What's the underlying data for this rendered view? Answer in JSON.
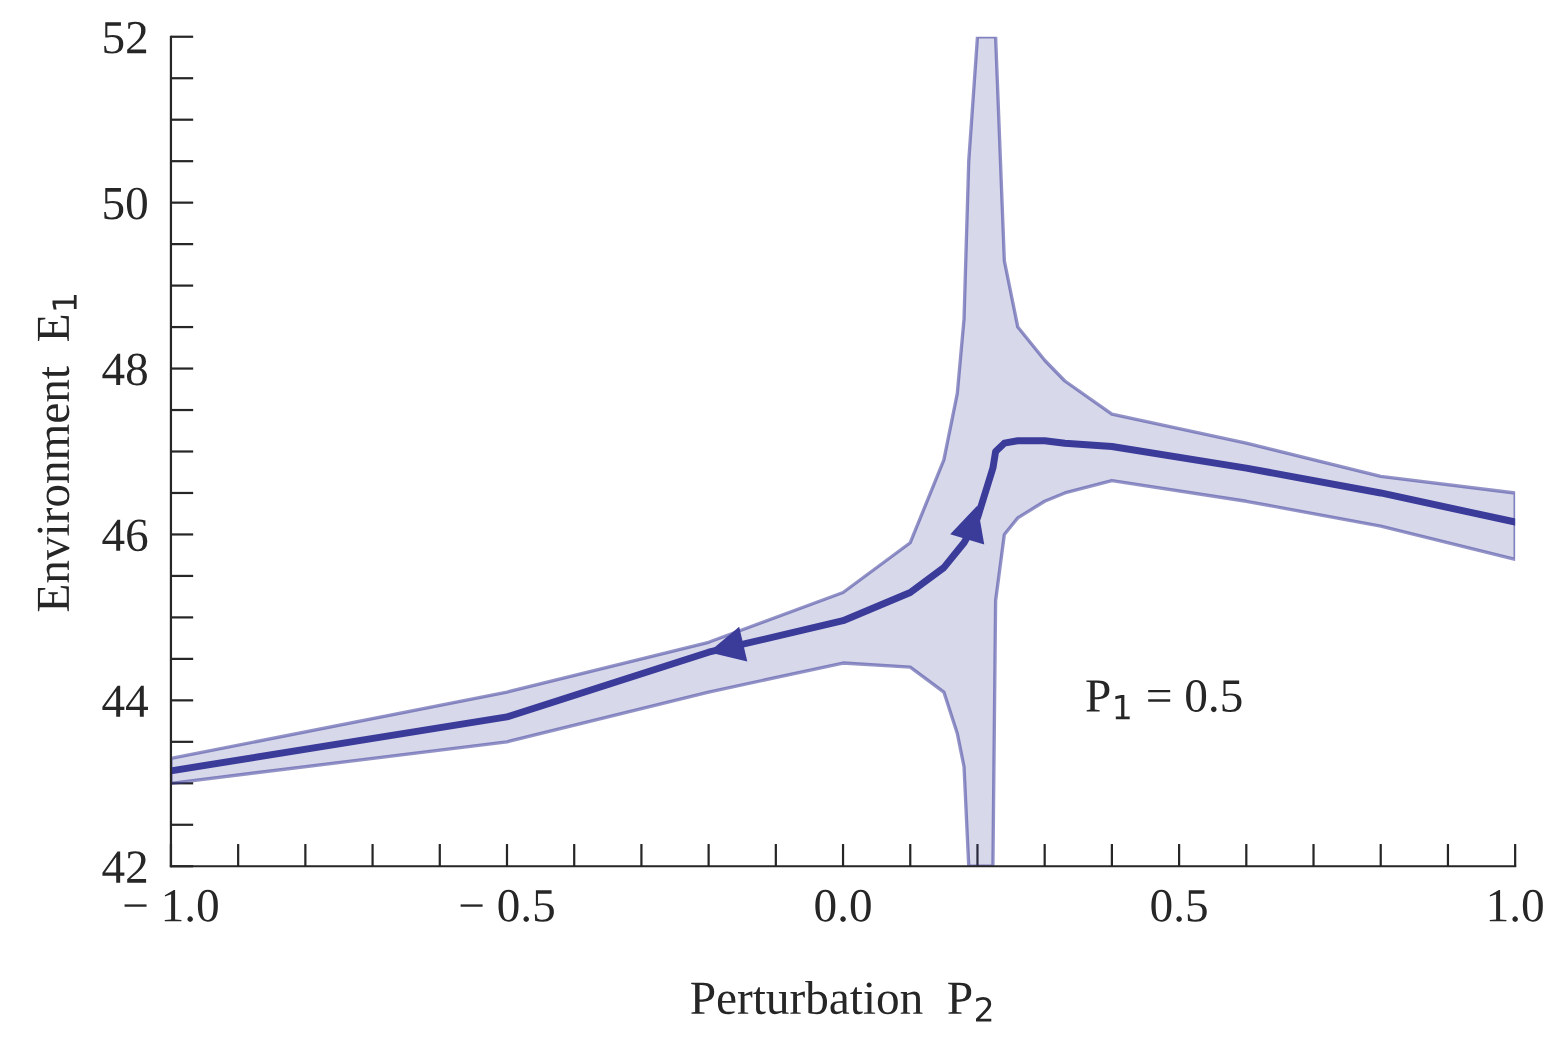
{
  "chart_data": {
    "type": "line",
    "xlabel": "Perturbation  P$_{2}$",
    "ylabel": "Environment  E$_{1}$",
    "annotations": [
      "P$_{1}$ = 0.5"
    ],
    "series": [
      {
        "color": "#3b3b9a",
        "x": [
          -1.0,
          -0.5,
          -0.2,
          0.0,
          0.1,
          0.15,
          0.17,
          0.18,
          0.187,
          0.2,
          0.223,
          0.227,
          0.24,
          0.26,
          0.3,
          0.33,
          0.4,
          0.6,
          0.8,
          1.0
        ],
        "values": [
          43.15,
          43.8,
          44.58,
          44.96,
          45.3,
          45.6,
          45.8,
          45.9,
          46.0,
          46.2,
          46.8,
          47.0,
          47.1,
          47.13,
          47.13,
          47.1,
          47.06,
          46.8,
          46.5,
          46.15
        ],
        "upper": [
          43.3,
          44.1,
          44.7,
          45.3,
          45.9,
          46.9,
          47.7,
          48.6,
          50.5,
          52,
          52,
          52,
          49.3,
          48.5,
          48.1,
          47.85,
          47.45,
          47.1,
          46.7,
          46.5
        ],
        "lower": [
          43.0,
          43.5,
          44.1,
          44.45,
          44.4,
          44.1,
          43.6,
          43.2,
          42,
          42,
          42,
          45.2,
          46.0,
          46.2,
          46.4,
          46.5,
          46.65,
          46.4,
          46.1,
          45.7
        ]
      }
    ],
    "xlim": [
      -1.0,
      1.0
    ],
    "ylim": [
      42,
      52
    ],
    "xticks": [
      {
        "value": -1.0,
        "label": "− 1.0"
      },
      {
        "value": -0.9,
        "label": null
      },
      {
        "value": -0.8,
        "label": null
      },
      {
        "value": -0.7,
        "label": null
      },
      {
        "value": -0.6,
        "label": null
      },
      {
        "value": -0.5,
        "label": "− 0.5"
      },
      {
        "value": -0.4,
        "label": null
      },
      {
        "value": -0.3,
        "label": null
      },
      {
        "value": -0.2,
        "label": null
      },
      {
        "value": -0.1,
        "label": null
      },
      {
        "value": 0.0,
        "label": "0.0"
      },
      {
        "value": 0.1,
        "label": null
      },
      {
        "value": 0.2,
        "label": null
      },
      {
        "value": 0.3,
        "label": null
      },
      {
        "value": 0.4,
        "label": null
      },
      {
        "value": 0.5,
        "label": "0.5"
      },
      {
        "value": 0.6,
        "label": null
      },
      {
        "value": 0.7,
        "label": null
      },
      {
        "value": 0.8,
        "label": null
      },
      {
        "value": 0.9,
        "label": null
      },
      {
        "value": 1.0,
        "label": "1.0"
      }
    ],
    "yticks": [
      42,
      {
        "value": 42.5,
        "label": null
      },
      {
        "value": 43,
        "label": null
      },
      {
        "value": 43.5,
        "label": null
      },
      44,
      {
        "value": 44.5,
        "label": null
      },
      {
        "value": 45,
        "label": null
      },
      {
        "value": 45.5,
        "label": null
      },
      46,
      {
        "value": 46.5,
        "label": null
      },
      {
        "value": 47,
        "label": null
      },
      {
        "value": 47.5,
        "label": null
      },
      48,
      {
        "value": 48.5,
        "label": null
      },
      {
        "value": 49,
        "label": null
      },
      {
        "value": 49.5,
        "label": null
      },
      50,
      {
        "value": 50.5,
        "label": null
      },
      {
        "value": 51,
        "label": null
      },
      {
        "value": 51.5,
        "label": null
      },
      52
    ],
    "grid": false,
    "legend": false,
    "marker": "none",
    "line_style": "solid"
  }
}
